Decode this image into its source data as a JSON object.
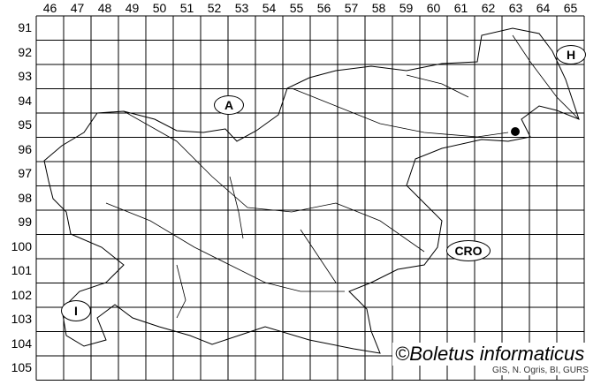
{
  "columns": [
    "46",
    "47",
    "48",
    "49",
    "50",
    "51",
    "52",
    "53",
    "54",
    "55",
    "56",
    "57",
    "58",
    "59",
    "60",
    "61",
    "62",
    "63",
    "64",
    "65"
  ],
  "rows": [
    "91",
    "92",
    "93",
    "94",
    "95",
    "96",
    "97",
    "98",
    "99",
    "100",
    "101",
    "102",
    "103",
    "104",
    "105"
  ],
  "country_labels": {
    "austria": "A",
    "hungary": "H",
    "croatia": "CRO",
    "italy": "I"
  },
  "copyright": "©Boletus informaticus",
  "credit": "GIS, N. Ogris, BI, GURS",
  "records": [
    {
      "column": "62",
      "row": "96"
    }
  ]
}
